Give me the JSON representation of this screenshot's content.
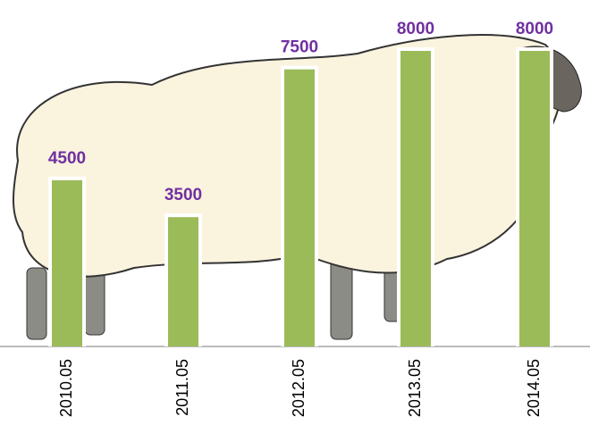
{
  "chart_data": {
    "type": "bar",
    "categories": [
      "2010.05",
      "2011.05",
      "2012.05",
      "2013.05",
      "2014.05"
    ],
    "values": [
      4500,
      3500,
      7500,
      8000,
      8000
    ],
    "color": "#9bbb59",
    "label_color": "#7030a0",
    "ylim": [
      0,
      8000
    ]
  }
}
